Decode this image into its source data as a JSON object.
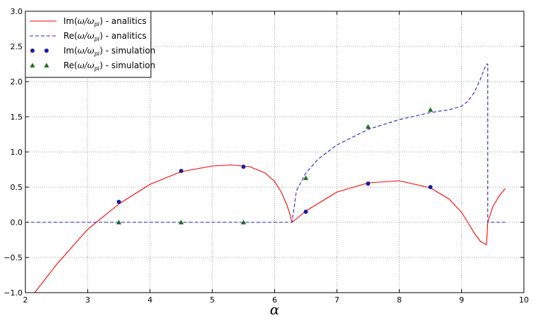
{
  "chart_data": {
    "type": "line",
    "title": "",
    "xlabel": "α",
    "ylabel": "",
    "xlim": [
      2,
      10
    ],
    "ylim": [
      -1.0,
      3.0
    ],
    "x_ticks": [
      "2",
      "3",
      "4",
      "5",
      "6",
      "7",
      "8",
      "9",
      "10"
    ],
    "y_ticks": [
      "−1.0",
      "−0.5",
      "0.0",
      "0.5",
      "1.0",
      "1.5",
      "2.0",
      "2.5",
      "3.0"
    ],
    "grid": true,
    "legend_position": "top-left",
    "series": [
      {
        "name": "Im(ω/ω_pi) - analitics",
        "legend_base": "Im(",
        "legend_sub": "pi",
        "legend_tail": ") - analitics",
        "style": "line",
        "color": "#ff0000",
        "x": [
          2.15,
          2.5,
          3.0,
          3.5,
          4.0,
          4.5,
          5.0,
          5.3,
          5.6,
          5.85,
          6.0,
          6.1,
          6.2,
          6.25,
          6.28,
          6.5,
          7.0,
          7.5,
          8.0,
          8.5,
          8.8,
          9.0,
          9.1,
          9.2,
          9.3,
          9.4,
          9.42,
          9.5,
          9.6,
          9.7
        ],
        "y": [
          -1.0,
          -0.6,
          -0.1,
          0.26,
          0.54,
          0.72,
          0.8,
          0.815,
          0.79,
          0.7,
          0.58,
          0.44,
          0.24,
          0.1,
          0.0,
          0.16,
          0.43,
          0.56,
          0.59,
          0.49,
          0.33,
          0.14,
          0.0,
          -0.15,
          -0.27,
          -0.32,
          0.0,
          0.22,
          0.37,
          0.48
        ]
      },
      {
        "name": "Re(ω/ω_pi) - analitics",
        "legend_base": "Re(",
        "legend_sub": "pi",
        "legend_tail": ") - analitics",
        "style": "dashed",
        "color": "#2222cc",
        "x": [
          2.0,
          6.28,
          6.35,
          6.5,
          6.7,
          7.0,
          7.5,
          8.0,
          8.5,
          8.8,
          9.0,
          9.1,
          9.2,
          9.3,
          9.35,
          9.4,
          9.42,
          9.42,
          9.5,
          9.7
        ],
        "y": [
          0.0,
          0.0,
          0.45,
          0.7,
          0.9,
          1.1,
          1.32,
          1.46,
          1.56,
          1.6,
          1.65,
          1.72,
          1.84,
          2.03,
          2.15,
          2.25,
          2.25,
          0.0,
          0.0,
          0.0
        ]
      },
      {
        "name": "Im(ω/ω_pi) - simulation",
        "legend_base": "Im(",
        "legend_sub": "pi",
        "legend_tail": ") - simulation",
        "style": "circle",
        "color": "#1a1aa6",
        "x": [
          3.5,
          4.5,
          5.5,
          6.5,
          7.5,
          8.5
        ],
        "y": [
          0.29,
          0.73,
          0.79,
          0.15,
          0.55,
          0.5
        ]
      },
      {
        "name": "Re(ω/ω_pi) - simulation",
        "legend_base": "Re(",
        "legend_sub": "pi",
        "legend_tail": ") - simulation",
        "style": "triangle",
        "color": "#1e6b1e",
        "x": [
          3.5,
          4.5,
          5.5,
          6.5,
          7.5,
          8.5
        ],
        "y": [
          0.0,
          0.0,
          0.0,
          0.63,
          1.36,
          1.6
        ]
      }
    ]
  }
}
